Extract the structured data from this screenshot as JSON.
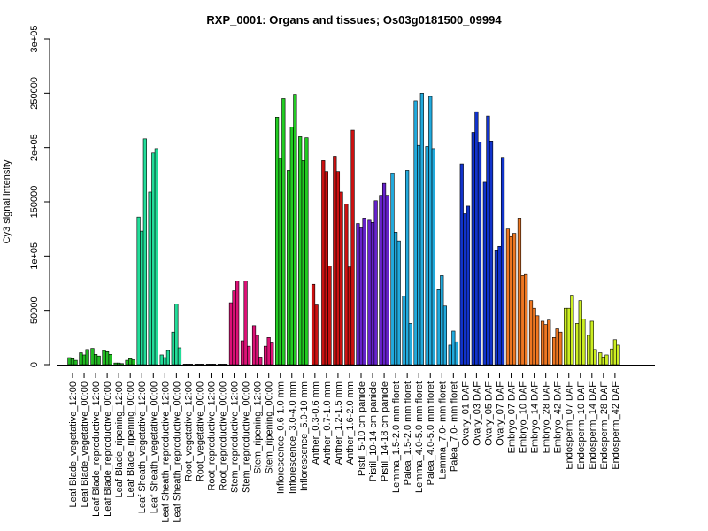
{
  "chart_data": {
    "type": "bar",
    "title": "RXP_0001: Organs and tissues; Os03g0181500_09994",
    "ylabel": "Cy3 signal intensity",
    "ylim": [
      0,
      300000
    ],
    "y_ticks": [
      0,
      50000,
      100000,
      150000,
      200000,
      250000,
      300000
    ],
    "y_tick_labels": [
      "0",
      "50000",
      "1e+05",
      "150000",
      "2e+05",
      "250000",
      "3e+05"
    ],
    "grid": false,
    "legend": "none",
    "x_tick_labels": [
      "Leaf Blade_vegetative_12:00",
      "Leaf Blade_vegetative_00:00",
      "Leaf Blade_reproductive_12:00",
      "Leaf Blade_reproductive_00:00",
      "Leaf Blade_ripening_12:00",
      "Leaf Blade_ripening_00:00",
      "Leaf Sheath_vegetative_12:00",
      "Leaf Sheath_vegetative_00:00",
      "Leaf Sheath_reproductive_12:00",
      "Leaf Sheath_reproductive_00:00",
      "Root_vegetative_12:00",
      "Root_vegetative_00:00",
      "Root_reproductive_12:00",
      "Root_reproductive_00:00",
      "Stem_reproductive_12:00",
      "Stem_reproductive_00:00",
      "Stem_ripening_12:00",
      "Stem_ripening_00:00",
      "Inflorescence_0.6-1.0 mm",
      "Inflorescence_3.0-4.0 mm",
      "Inflorescence_5.0-10 mm",
      "Anther_0.3-0.6 mm",
      "Anther_0.7-1.0 mm",
      "Anther_1.2-1.5 mm",
      "Anther_1.6-2.0 mm",
      "Pistil_5-10 cm panicle",
      "Pistil_10-14 cm panicle",
      "Pistil_14-18 cm panicle",
      "Lemma_1.5-2.0 mm floret",
      "Palea_1.5-2.0 mm floret",
      "Lemma_4.0-5.0 mm floret",
      "Palea_4.0-5.0 mm floret",
      "Lemma_7.0- mm floret",
      "Palea_7.0- mm floret",
      "Ovary_01 DAF",
      "Ovary_03 DAF",
      "Ovary_05 DAF",
      "Ovary_07 DAF",
      "Embryo_07 DAF",
      "Embryo_10 DAF",
      "Embryo_14 DAF",
      "Embryo_28 DAF",
      "Embryo_42 DAF",
      "Endosperm_07 DAF",
      "Endosperm_10 DAF",
      "Endosperm_14 DAF",
      "Endosperm_28 DAF",
      "Endosperm_42 DAF"
    ],
    "groups": [
      {
        "color": "#22bb22",
        "values": [
          6500,
          5500,
          4000
        ]
      },
      {
        "color": "#22bb22",
        "values": [
          11000,
          9000,
          14000
        ]
      },
      {
        "color": "#22bb22",
        "values": [
          15000,
          9500,
          8000
        ]
      },
      {
        "color": "#22bb22",
        "values": [
          13000,
          12000,
          9500
        ]
      },
      {
        "color": "#22bb22",
        "values": [
          1500,
          1500,
          1000
        ]
      },
      {
        "color": "#22bb22",
        "values": [
          4000,
          5500,
          4500
        ]
      },
      {
        "color": "#22dd99",
        "values": [
          136000,
          123000,
          208000
        ]
      },
      {
        "color": "#22dd99",
        "values": [
          159000,
          195000,
          199000
        ]
      },
      {
        "color": "#22dd99",
        "values": [
          9000,
          6500,
          13000
        ]
      },
      {
        "color": "#22dd99",
        "values": [
          30000,
          56000,
          15500
        ]
      },
      {
        "color": "#3a3a5a",
        "values": [
          500,
          500,
          500
        ]
      },
      {
        "color": "#3a3a5a",
        "values": [
          500,
          500,
          500
        ]
      },
      {
        "color": "#3a3a5a",
        "values": [
          500,
          500,
          500
        ]
      },
      {
        "color": "#3a3a5a",
        "values": [
          500,
          500,
          500
        ]
      },
      {
        "color": "#dd1177",
        "values": [
          57000,
          68000,
          77000
        ]
      },
      {
        "color": "#dd1177",
        "values": [
          22000,
          77000,
          17000
        ]
      },
      {
        "color": "#dd1177",
        "values": [
          36000,
          27000,
          7000
        ]
      },
      {
        "color": "#dd1177",
        "values": [
          17000,
          25000,
          20000
        ]
      },
      {
        "color": "#22cc22",
        "values": [
          228000,
          190000,
          245000
        ]
      },
      {
        "color": "#22cc22",
        "values": [
          179000,
          219000,
          249000
        ]
      },
      {
        "color": "#22cc22",
        "values": [
          210000,
          188000,
          209000
        ]
      },
      {
        "color": "#cc1111",
        "values": [
          74000,
          55000
        ]
      },
      {
        "color": "#cc1111",
        "values": [
          188000,
          178000,
          91000
        ]
      },
      {
        "color": "#cc1111",
        "values": [
          192000,
          178000,
          159000
        ]
      },
      {
        "color": "#cc1111",
        "values": [
          148000,
          90000,
          216000
        ]
      },
      {
        "color": "#6622cc",
        "values": [
          130000,
          126000,
          135000
        ]
      },
      {
        "color": "#6622cc",
        "values": [
          133000,
          131000,
          151000
        ]
      },
      {
        "color": "#6622cc",
        "values": [
          156000,
          167000,
          156000
        ]
      },
      {
        "color": "#22aadd",
        "values": [
          176000,
          122000,
          114000
        ]
      },
      {
        "color": "#22aadd",
        "values": [
          63000,
          179000,
          38000
        ]
      },
      {
        "color": "#22aadd",
        "values": [
          243000,
          202000,
          250000
        ]
      },
      {
        "color": "#22aadd",
        "values": [
          201000,
          247000,
          199000
        ]
      },
      {
        "color": "#22aadd",
        "values": [
          69000,
          82000,
          54000
        ]
      },
      {
        "color": "#22aadd",
        "values": [
          18000,
          31000,
          21000
        ]
      },
      {
        "color": "#1133cc",
        "values": [
          185000,
          139000,
          146000
        ]
      },
      {
        "color": "#1133cc",
        "values": [
          214000,
          233000,
          205000
        ]
      },
      {
        "color": "#1133cc",
        "values": [
          168000,
          229000,
          206000
        ]
      },
      {
        "color": "#1133cc",
        "values": [
          105000,
          109000,
          191000
        ]
      },
      {
        "color": "#ee7722",
        "values": [
          125000,
          118000,
          121000
        ]
      },
      {
        "color": "#ee7722",
        "values": [
          135000,
          82000,
          83000
        ]
      },
      {
        "color": "#ee7722",
        "values": [
          59000,
          52000,
          45000
        ]
      },
      {
        "color": "#ee7722",
        "values": [
          40000,
          37000,
          41000
        ]
      },
      {
        "color": "#ee7722",
        "values": [
          25000,
          33000,
          30000
        ]
      },
      {
        "color": "#ccee22",
        "values": [
          52000,
          52000,
          64000
        ]
      },
      {
        "color": "#ccee22",
        "values": [
          38000,
          59000,
          42000
        ]
      },
      {
        "color": "#ccee22",
        "values": [
          27000,
          40000,
          14000
        ]
      },
      {
        "color": "#ccee22",
        "values": [
          11000,
          7000,
          9000
        ]
      },
      {
        "color": "#ccee22",
        "values": [
          14500,
          23000,
          18000
        ]
      }
    ]
  }
}
